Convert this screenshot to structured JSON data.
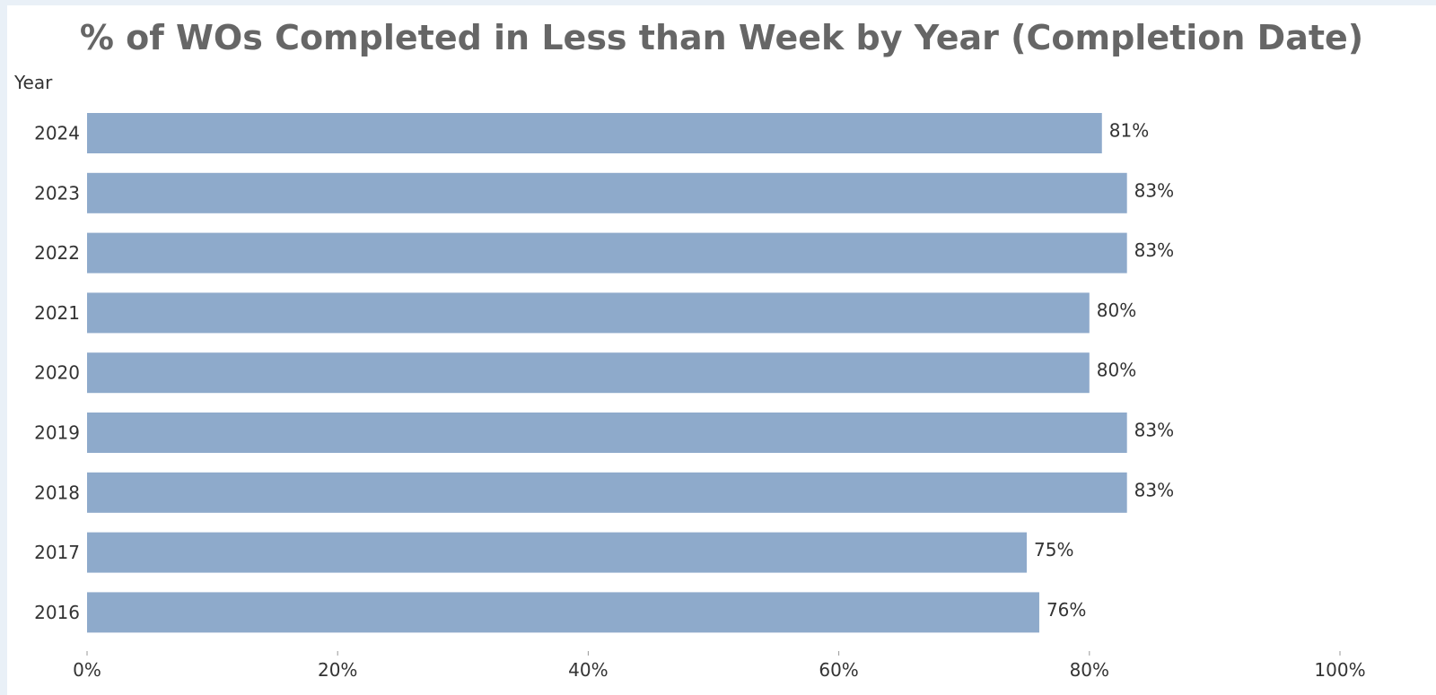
{
  "chart_data": {
    "type": "bar",
    "orientation": "horizontal",
    "title": "% of WOs Completed in Less than Week by Year (Completion Date)",
    "ylabel": "Year",
    "xlabel": "",
    "categories": [
      "2024",
      "2023",
      "2022",
      "2021",
      "2020",
      "2019",
      "2018",
      "2017",
      "2016"
    ],
    "values": [
      81,
      83,
      83,
      80,
      80,
      83,
      83,
      75,
      76
    ],
    "data_labels": [
      "81%",
      "83%",
      "83%",
      "80%",
      "80%",
      "83%",
      "83%",
      "75%",
      "76%"
    ],
    "xlim": [
      0,
      100
    ],
    "xticks": [
      0,
      20,
      40,
      60,
      80,
      100
    ],
    "xtick_labels": [
      "0%",
      "20%",
      "40%",
      "60%",
      "80%",
      "100%"
    ],
    "grid": false,
    "bar_color": "#8eaacb"
  }
}
